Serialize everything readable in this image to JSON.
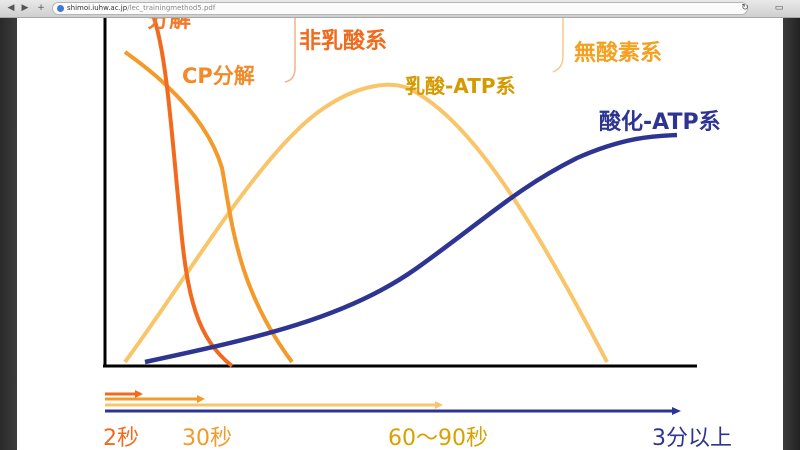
{
  "browser": {
    "url_domain": "shimoi.iuhw.ac.jp",
    "url_path": "/lec_trainingmethod5.pdf"
  },
  "slide": {
    "labels": {
      "anaerobic_partial": "分解",
      "nonlactic": "非乳酸系",
      "cp_breakdown": "CP分解",
      "anaerobic": "無酸素系",
      "lactic_atp": "乳酸-ATP系",
      "aerobic_atp": "酸化-ATP系"
    },
    "time_labels": {
      "t_2s": "2秒",
      "t_30s": "30秒",
      "t_60_90s": "60〜90秒",
      "t_3min": "3分以上"
    },
    "colors": {
      "cp_dark_orange": "#f26a1e",
      "cp_orange": "#f39a2a",
      "lactic_yellow": "#f9c56a",
      "aerobic_navy": "#2e3491",
      "axis": "#000000"
    }
  }
}
